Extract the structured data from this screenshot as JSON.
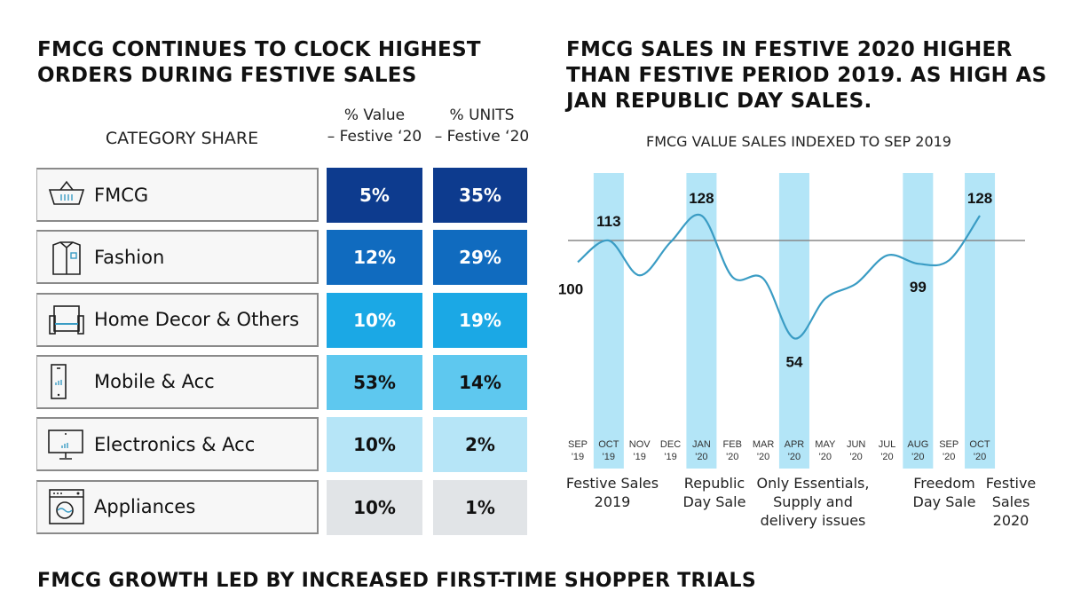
{
  "left": {
    "title_line1": "FMCG CONTINUES TO CLOCK HIGHEST",
    "title_line2": "ORDERS DURING FESTIVE SALES",
    "col_category": "CATEGORY SHARE",
    "col_value_line1": "% Value",
    "col_value_line2": "– Festive ‘20",
    "col_units_line1": "% UNITS",
    "col_units_line2": "– Festive ‘20",
    "rows": [
      {
        "label": "FMCG",
        "icon": "basket-icon",
        "value": "5%",
        "units": "35%",
        "color": "#0d3b8e",
        "text_color": "#ffffff"
      },
      {
        "label": "Fashion",
        "icon": "shirt-icon",
        "value": "12%",
        "units": "29%",
        "color": "#106bbf",
        "text_color": "#ffffff"
      },
      {
        "label": "Home Decor & Others",
        "icon": "sofa-icon",
        "value": "10%",
        "units": "19%",
        "color": "#1ba8e5",
        "text_color": "#ffffff"
      },
      {
        "label": "Mobile & Acc",
        "icon": "mobile-phone-icon",
        "value": "53%",
        "units": "14%",
        "color": "#5ec8ef",
        "text_color": "#111111"
      },
      {
        "label": "Electronics & Acc",
        "icon": "monitor-icon",
        "value": "10%",
        "units": "2%",
        "color": "#b6e5f7",
        "text_color": "#111111"
      },
      {
        "label": "Appliances",
        "icon": "washing-machine-icon",
        "value": "10%",
        "units": "1%",
        "color": "#e1e4e7",
        "text_color": "#111111"
      }
    ]
  },
  "right": {
    "title_line1": "FMCG SALES IN FESTIVE 2020 HIGHER",
    "title_line2": "THAN FESTIVE PERIOD 2019. AS HIGH AS",
    "title_line3": "JAN REPUBLIC DAY SALES."
  },
  "footer": {
    "title": "FMCG GROWTH LED BY INCREASED FIRST-TIME SHOPPER TRIALS"
  },
  "chart_data": {
    "type": "line",
    "title": "FMCG VALUE SALES INDEXED TO SEP 2019",
    "categories": [
      [
        "SEP",
        "'19"
      ],
      [
        "OCT",
        "'19"
      ],
      [
        "NOV",
        "'19"
      ],
      [
        "DEC",
        "'19"
      ],
      [
        "JAN",
        "'20"
      ],
      [
        "FEB",
        "'20"
      ],
      [
        "MAR",
        "'20"
      ],
      [
        "APR",
        "'20"
      ],
      [
        "MAY",
        "'20"
      ],
      [
        "JUN",
        "'20"
      ],
      [
        "JUL",
        "'20"
      ],
      [
        "AUG",
        "'20"
      ],
      [
        "SEP",
        "'20"
      ],
      [
        "OCT",
        "'20"
      ]
    ],
    "values": [
      100,
      113,
      92,
      112,
      128,
      91,
      90,
      54,
      78,
      87,
      104,
      99,
      101,
      128
    ],
    "data_labels": [
      {
        "index": 0,
        "text": "100"
      },
      {
        "index": 1,
        "text": "113"
      },
      {
        "index": 4,
        "text": "128"
      },
      {
        "index": 7,
        "text": "54"
      },
      {
        "index": 11,
        "text": "99"
      },
      {
        "index": 13,
        "text": "128"
      }
    ],
    "reference_line": 113,
    "highlighted_months": [
      1,
      4,
      7,
      11,
      13
    ],
    "line_color": "#3a9cc4",
    "highlight_color": "#b3e5f7",
    "annotations": [
      {
        "lines": [
          "Festive Sales",
          "2019"
        ]
      },
      {
        "lines": [
          "Republic",
          "Day Sale"
        ]
      },
      {
        "lines": [
          "Only Essentials,",
          "Supply and",
          "delivery issues"
        ]
      },
      {
        "lines": [
          "Freedom",
          "Day Sale"
        ]
      },
      {
        "lines": [
          "Festive",
          "Sales",
          "2020"
        ]
      }
    ]
  }
}
